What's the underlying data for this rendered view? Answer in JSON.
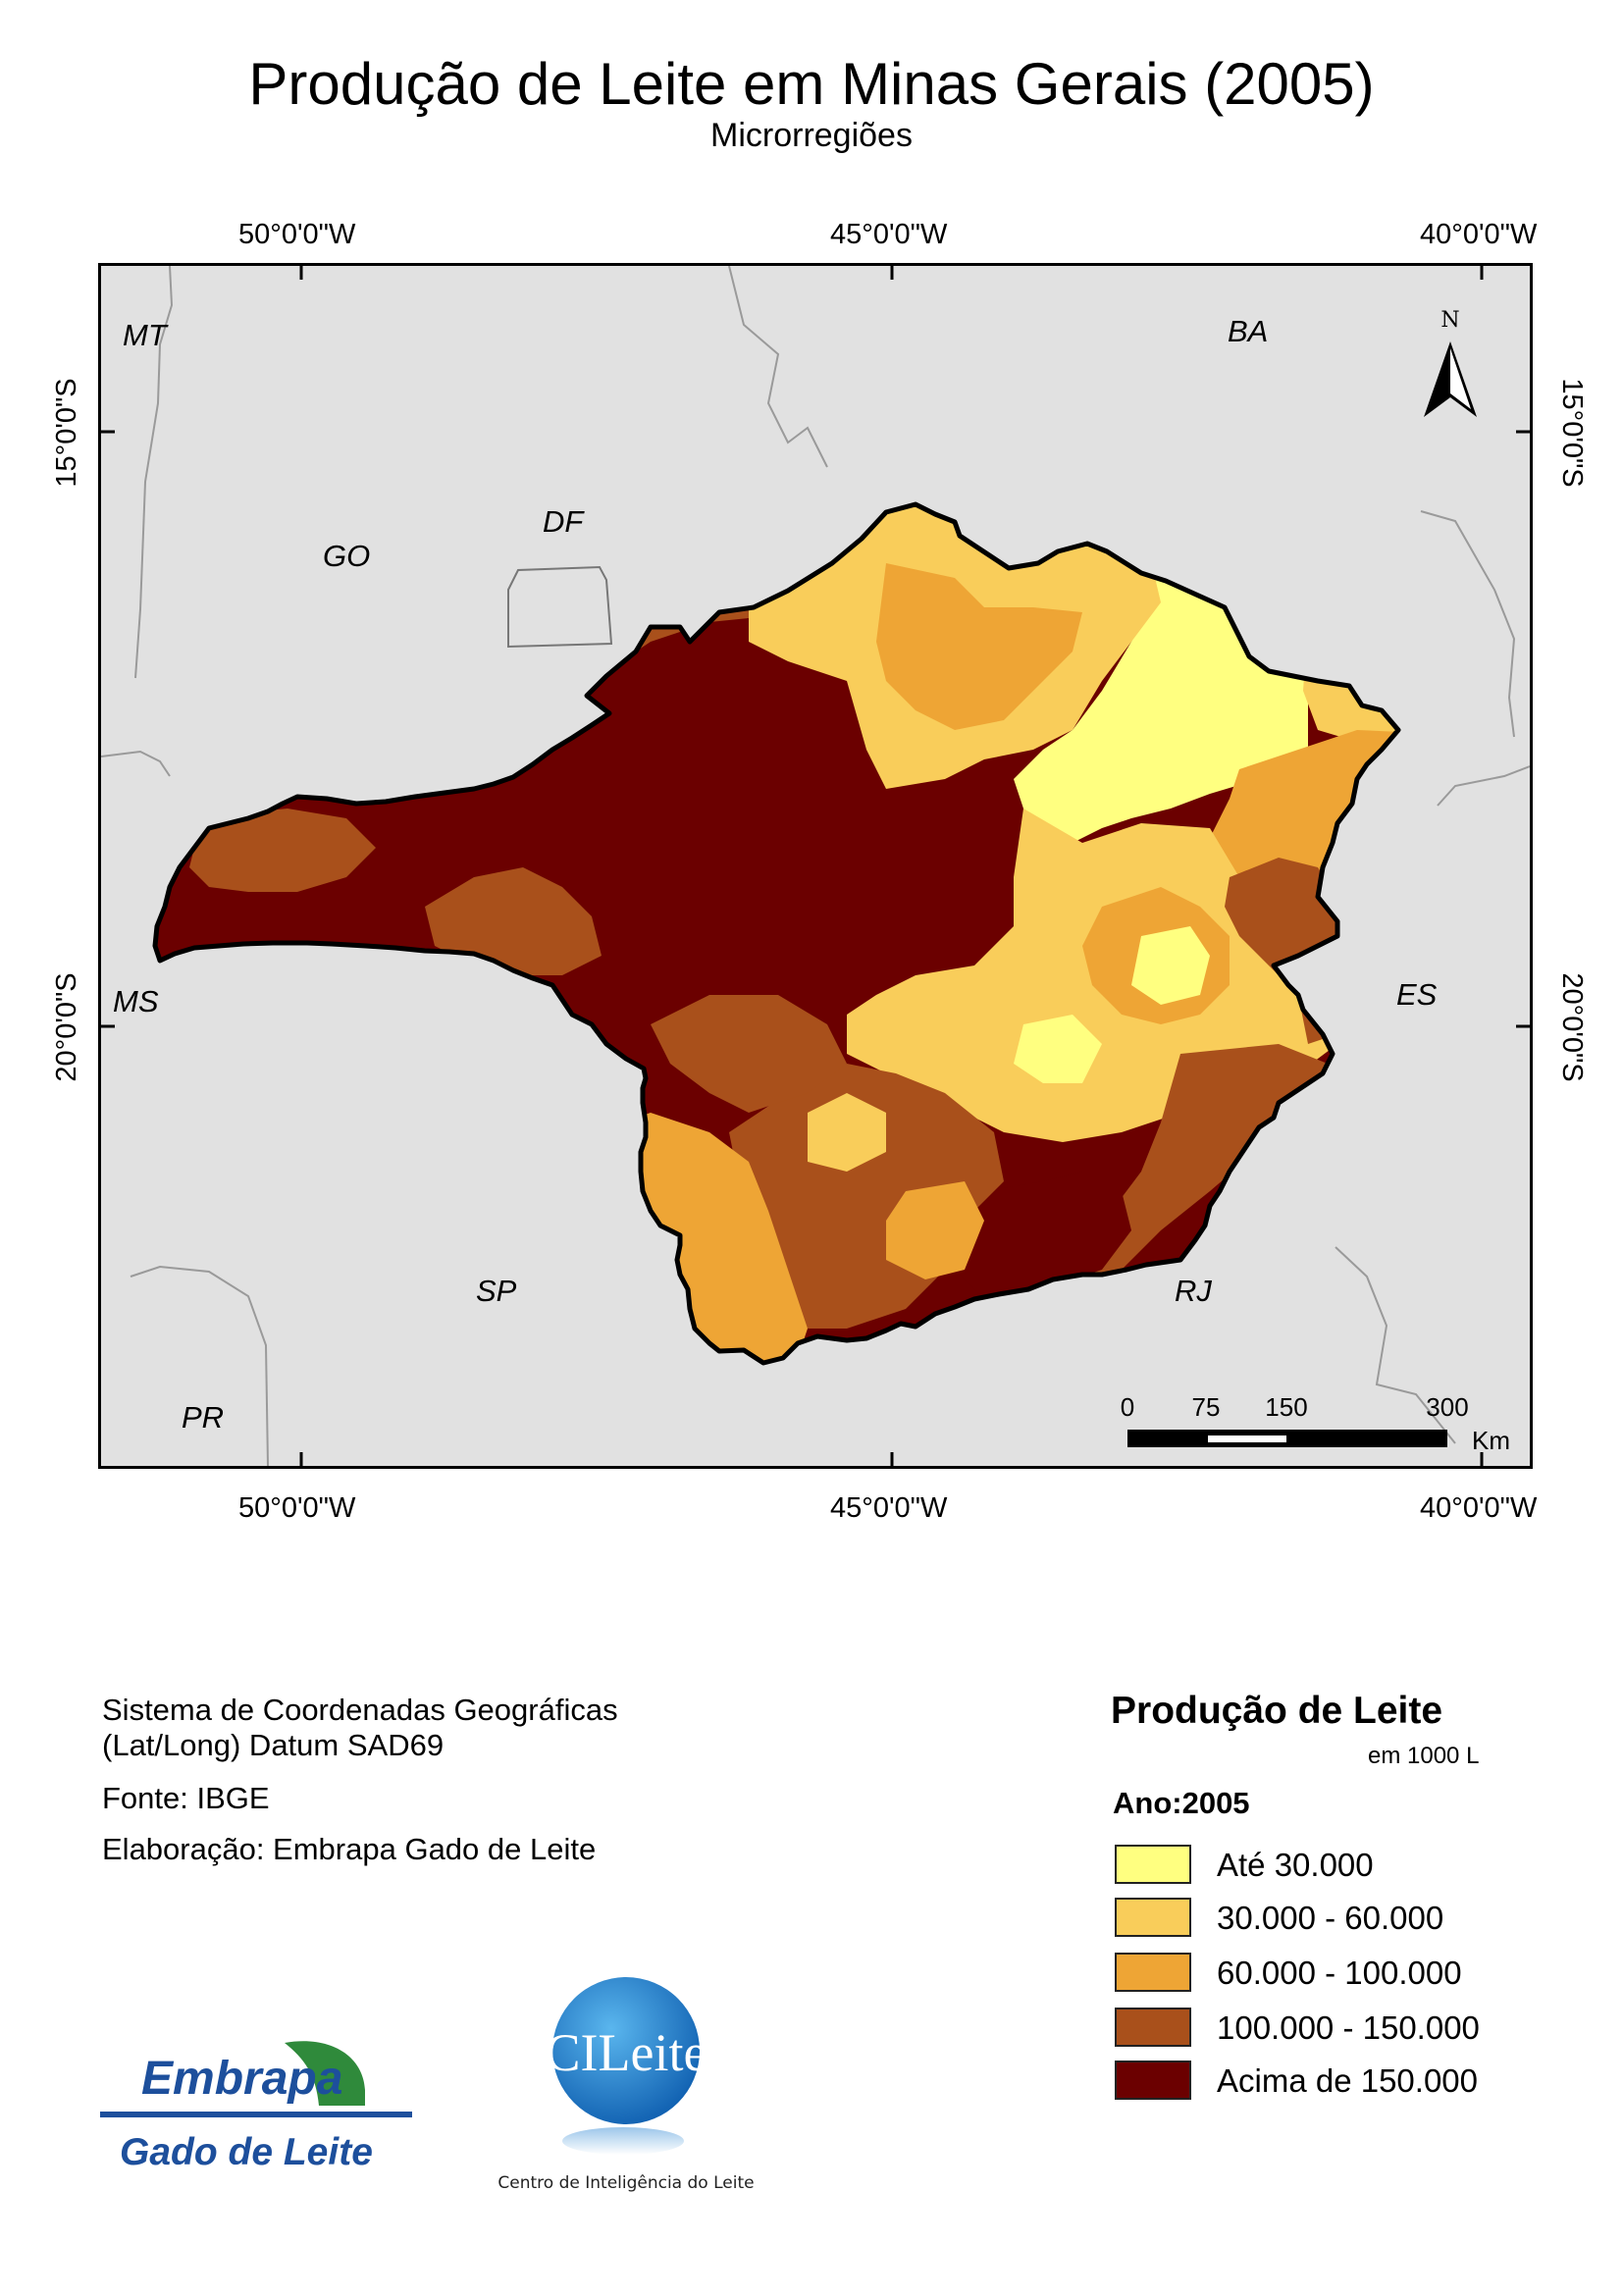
{
  "title": "Produção de Leite em Minas Gerais (2005)",
  "subtitle": "Microrregiões",
  "graticule": {
    "lon_labels": [
      "50°0'0\"W",
      "45°0'0\"W",
      "40°0'0\"W"
    ],
    "lat_labels": [
      "15°0'0\"S",
      "20°0'0\"S"
    ]
  },
  "states": [
    "MT",
    "BA",
    "GO",
    "DF",
    "MS",
    "ES",
    "SP",
    "RJ",
    "PR"
  ],
  "north_arrow": {
    "label": "N"
  },
  "scale_bar": {
    "ticks": [
      "0",
      "75",
      "150",
      "300"
    ],
    "unit": "Km"
  },
  "colors": {
    "class1": "#ffff80",
    "class2": "#f9cd5a",
    "class3": "#eea535",
    "class4": "#a9501b",
    "class5": "#6b0000",
    "background": "#e1e1e1"
  },
  "info": {
    "coord_line1": "Sistema de Coordenadas Geográficas",
    "coord_line2": "(Lat/Long) Datum SAD69",
    "source": "Fonte: IBGE",
    "author": "Elaboração: Embrapa Gado de Leite"
  },
  "legend": {
    "title": "Produção de Leite",
    "unit": "em 1000 L",
    "year": "Ano:2005",
    "classes": [
      {
        "label": "Até 30.000"
      },
      {
        "label": "30.000 - 60.000"
      },
      {
        "label": "60.000 - 100.000"
      },
      {
        "label": "100.000 - 150.000"
      },
      {
        "label": "Acima de 150.000"
      }
    ]
  },
  "logos": {
    "embrapa_name": "Embrapa",
    "embrapa_unit": "Gado de Leite",
    "cileite_name": "CILeite",
    "cileite_caption": "Centro de Inteligência do Leite"
  }
}
